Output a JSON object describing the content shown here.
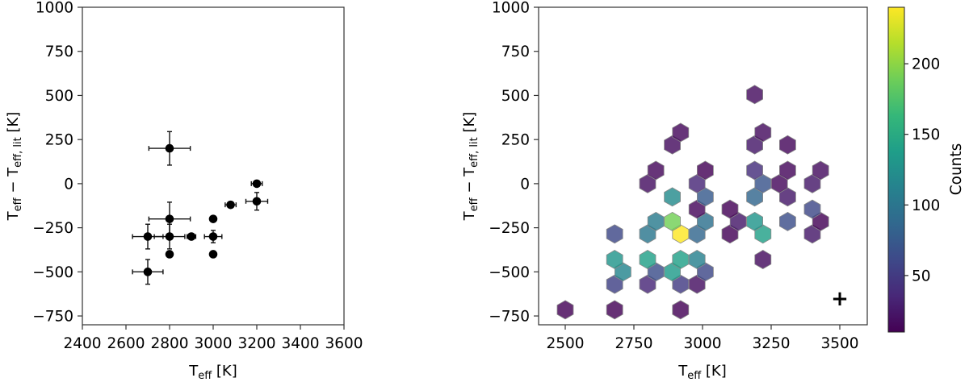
{
  "chart_data": [
    {
      "type": "scatter",
      "panel": "left",
      "title": "",
      "xlabel": "T_eff [K]",
      "ylabel": "T_eff − T_eff,lit [K]",
      "xlim": [
        2400,
        3600
      ],
      "ylim": [
        -800,
        1000
      ],
      "xticks": [
        2400,
        2600,
        2800,
        3000,
        3200,
        3400,
        3600
      ],
      "yticks": [
        -750,
        -500,
        -250,
        0,
        250,
        500,
        750,
        1000
      ],
      "grid": false,
      "marker_color": "#000000",
      "points": [
        {
          "x": 2800,
          "y": 200,
          "xerr": 95,
          "yerr": 95
        },
        {
          "x": 3200,
          "y": 0,
          "xerr": 25,
          "yerr": 0
        },
        {
          "x": 3200,
          "y": -100,
          "xerr": 50,
          "yerr": 50
        },
        {
          "x": 3080,
          "y": -120,
          "xerr": 25,
          "yerr": 15
        },
        {
          "x": 2800,
          "y": -200,
          "xerr": 95,
          "yerr": 95
        },
        {
          "x": 3000,
          "y": -200,
          "xerr": 0,
          "yerr": 0
        },
        {
          "x": 2700,
          "y": -300,
          "xerr": 70,
          "yerr": 70
        },
        {
          "x": 2800,
          "y": -300,
          "xerr": 70,
          "yerr": 70
        },
        {
          "x": 2900,
          "y": -300,
          "xerr": 20,
          "yerr": 15
        },
        {
          "x": 3000,
          "y": -300,
          "xerr": 40,
          "yerr": 35
        },
        {
          "x": 2800,
          "y": -400,
          "xerr": 0,
          "yerr": 0
        },
        {
          "x": 3000,
          "y": -400,
          "xerr": 0,
          "yerr": 0
        },
        {
          "x": 2700,
          "y": -500,
          "xerr": 70,
          "yerr": 70
        }
      ]
    },
    {
      "type": "heatmap",
      "subtype": "hexbin",
      "panel": "right",
      "title": "",
      "xlabel": "T_eff [K]",
      "ylabel": "T_eff − T_eff,lit [K]",
      "xlim": [
        2390,
        3605
      ],
      "ylim": [
        -800,
        1000
      ],
      "xticks": [
        2500,
        2750,
        3000,
        3250,
        3500
      ],
      "yticks": [
        -750,
        -500,
        -250,
        0,
        250,
        500,
        750,
        1000
      ],
      "grid": false,
      "colormap": "viridis",
      "colorbar": {
        "label": "Counts",
        "ticks": [
          50,
          100,
          150,
          200
        ],
        "range": [
          10,
          240
        ]
      },
      "typical_error_marker": {
        "x": 3500,
        "y": -600,
        "symbol": "+"
      },
      "cells": [
        {
          "x": 2500,
          "y": -715,
          "count": 12
        },
        {
          "x": 2680,
          "y": -715,
          "count": 12
        },
        {
          "x": 2920,
          "y": -715,
          "count": 12
        },
        {
          "x": 2680,
          "y": -570,
          "count": 55
        },
        {
          "x": 2800,
          "y": -570,
          "count": 35
        },
        {
          "x": 2920,
          "y": -570,
          "count": 50
        },
        {
          "x": 2980,
          "y": -570,
          "count": 20
        },
        {
          "x": 2710,
          "y": -500,
          "count": 115
        },
        {
          "x": 2830,
          "y": -500,
          "count": 65
        },
        {
          "x": 2890,
          "y": -500,
          "count": 135
        },
        {
          "x": 3010,
          "y": -500,
          "count": 60
        },
        {
          "x": 2680,
          "y": -430,
          "count": 130
        },
        {
          "x": 2800,
          "y": -430,
          "count": 140
        },
        {
          "x": 2920,
          "y": -430,
          "count": 140
        },
        {
          "x": 2980,
          "y": -430,
          "count": 110
        },
        {
          "x": 3220,
          "y": -430,
          "count": 18
        },
        {
          "x": 2680,
          "y": -285,
          "count": 60
        },
        {
          "x": 2800,
          "y": -285,
          "count": 100
        },
        {
          "x": 2920,
          "y": -285,
          "count": 240
        },
        {
          "x": 2980,
          "y": -285,
          "count": 85
        },
        {
          "x": 3100,
          "y": -285,
          "count": 12
        },
        {
          "x": 3220,
          "y": -285,
          "count": 140
        },
        {
          "x": 3400,
          "y": -285,
          "count": 25
        },
        {
          "x": 2830,
          "y": -215,
          "count": 105
        },
        {
          "x": 2890,
          "y": -215,
          "count": 190
        },
        {
          "x": 3010,
          "y": -215,
          "count": 95
        },
        {
          "x": 3130,
          "y": -215,
          "count": 25
        },
        {
          "x": 3190,
          "y": -215,
          "count": 130
        },
        {
          "x": 3310,
          "y": -215,
          "count": 65
        },
        {
          "x": 3430,
          "y": -215,
          "count": 12
        },
        {
          "x": 2980,
          "y": -145,
          "count": 15
        },
        {
          "x": 3100,
          "y": -145,
          "count": 12
        },
        {
          "x": 3400,
          "y": -145,
          "count": 60
        },
        {
          "x": 2890,
          "y": -75,
          "count": 120
        },
        {
          "x": 3010,
          "y": -75,
          "count": 75
        },
        {
          "x": 3190,
          "y": -75,
          "count": 85
        },
        {
          "x": 3310,
          "y": -75,
          "count": 25
        },
        {
          "x": 2800,
          "y": 0,
          "count": 20
        },
        {
          "x": 2980,
          "y": 0,
          "count": 35
        },
        {
          "x": 3220,
          "y": 0,
          "count": 70
        },
        {
          "x": 3280,
          "y": 0,
          "count": 15
        },
        {
          "x": 3400,
          "y": 0,
          "count": 25
        },
        {
          "x": 2830,
          "y": 75,
          "count": 15
        },
        {
          "x": 3010,
          "y": 75,
          "count": 12
        },
        {
          "x": 3190,
          "y": 75,
          "count": 40
        },
        {
          "x": 3310,
          "y": 75,
          "count": 15
        },
        {
          "x": 3430,
          "y": 75,
          "count": 18
        },
        {
          "x": 2890,
          "y": 220,
          "count": 18
        },
        {
          "x": 3190,
          "y": 220,
          "count": 25
        },
        {
          "x": 3310,
          "y": 220,
          "count": 15
        },
        {
          "x": 2920,
          "y": 290,
          "count": 15
        },
        {
          "x": 3220,
          "y": 290,
          "count": 18
        },
        {
          "x": 3190,
          "y": 505,
          "count": 18
        }
      ]
    }
  ],
  "left_panel": {
    "ylabel": {
      "main": "T",
      "sub1": "eff",
      "mid": " − T",
      "sub2": "eff, lit",
      "unit": " [K]"
    },
    "xlabel": {
      "main": "T",
      "sub": "eff",
      "unit": " [K]"
    },
    "xtick_labels": [
      "2400",
      "2600",
      "2800",
      "3000",
      "3200",
      "3400",
      "3600"
    ],
    "ytick_labels": [
      "1000",
      "750",
      "500",
      "250",
      "0",
      "−250",
      "−500",
      "−750"
    ]
  },
  "right_panel": {
    "ylabel": {
      "main": "T",
      "sub1": "eff",
      "mid": " − T",
      "sub2": "eff, lit",
      "unit": " [K]"
    },
    "xlabel": {
      "main": "T",
      "sub": "eff",
      "unit": " [K]"
    },
    "xtick_labels": [
      "2500",
      "2750",
      "3000",
      "3250",
      "3500"
    ],
    "ytick_labels": [
      "1000",
      "750",
      "500",
      "250",
      "0",
      "−250",
      "−500",
      "−750"
    ],
    "error_marker": "+"
  },
  "colorbar": {
    "label": "Counts",
    "tick_labels": [
      "200",
      "150",
      "100",
      "50"
    ],
    "stops": [
      "#440154",
      "#482878",
      "#3e4989",
      "#31688e",
      "#26828e",
      "#1f9e89",
      "#35b779",
      "#6ece58",
      "#b5de2b",
      "#fde725"
    ]
  }
}
